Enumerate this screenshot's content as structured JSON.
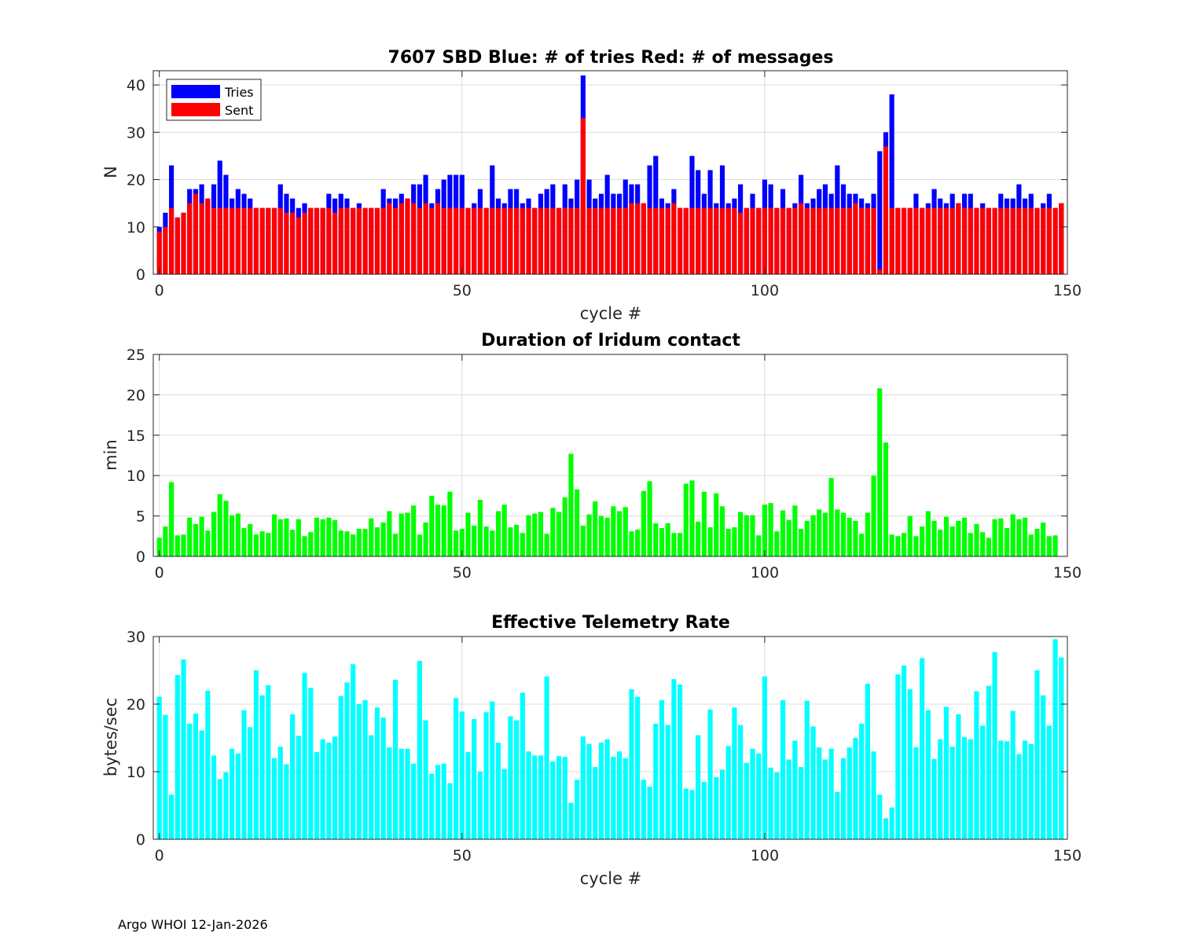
{
  "footer": "Argo WHOI 12-Jan-2026",
  "chart_data": [
    {
      "type": "bar",
      "stacked_overlay": true,
      "title": "7607 SBD  Blue: # of tries   Red: # of messages",
      "xlabel": "cycle #",
      "ylabel": "N",
      "xlim": [
        -1,
        150
      ],
      "ylim": [
        0,
        43
      ],
      "xticks": [
        0,
        50,
        100,
        150
      ],
      "yticks": [
        0,
        10,
        20,
        30,
        40
      ],
      "grid": true,
      "legend": "top-left",
      "series": [
        {
          "name": "Tries",
          "color": "#0000ff",
          "values": [
            10,
            13,
            23,
            12,
            13,
            18,
            18,
            19,
            16,
            19,
            24,
            21,
            16,
            18,
            17,
            16,
            14,
            14,
            14,
            14,
            19,
            17,
            16,
            14,
            15,
            14,
            14,
            14,
            17,
            16,
            17,
            16,
            14,
            15,
            14,
            14,
            14,
            18,
            16,
            16,
            17,
            16,
            19,
            19,
            21,
            15,
            18,
            20,
            21,
            21,
            21,
            14,
            15,
            18,
            14,
            23,
            16,
            15,
            18,
            18,
            15,
            16,
            14,
            17,
            18,
            19,
            14,
            19,
            16,
            20,
            42,
            20,
            16,
            17,
            21,
            17,
            17,
            20,
            19,
            19,
            15,
            23,
            25,
            16,
            15,
            18,
            14,
            14,
            25,
            22,
            17,
            22,
            15,
            23,
            15,
            16,
            19,
            14,
            17,
            14,
            20,
            19,
            14,
            18,
            14,
            15,
            21,
            15,
            16,
            18,
            19,
            17,
            23,
            19,
            17,
            17,
            16,
            15,
            17,
            26,
            30,
            38,
            14,
            14,
            14,
            17,
            14,
            15,
            18,
            16,
            15,
            17,
            15,
            17,
            17,
            14,
            15,
            14,
            14,
            17,
            16,
            16,
            19,
            16,
            17,
            14,
            15,
            17,
            14,
            15
          ]
        },
        {
          "name": "Sent",
          "color": "#ff0000",
          "values": [
            9,
            10,
            14,
            12,
            13,
            15,
            17,
            15,
            16,
            14,
            14,
            14,
            14,
            14,
            14,
            14,
            14,
            14,
            14,
            14,
            14,
            13,
            13,
            12,
            13,
            14,
            14,
            14,
            14,
            13,
            14,
            14,
            14,
            14,
            14,
            14,
            14,
            14,
            15,
            14,
            15,
            16,
            15,
            14,
            15,
            14,
            15,
            14,
            14,
            14,
            14,
            14,
            14,
            14,
            14,
            14,
            14,
            14,
            14,
            14,
            14,
            14,
            14,
            14,
            14,
            14,
            14,
            14,
            14,
            14,
            33,
            14,
            14,
            14,
            14,
            14,
            14,
            14,
            15,
            15,
            15,
            14,
            14,
            14,
            14,
            15,
            14,
            14,
            14,
            14,
            14,
            14,
            14,
            14,
            14,
            14,
            13,
            14,
            14,
            14,
            14,
            14,
            14,
            14,
            14,
            14,
            15,
            14,
            14,
            14,
            14,
            14,
            14,
            14,
            14,
            15,
            14,
            14,
            14,
            1,
            27,
            14,
            14,
            14,
            14,
            14,
            14,
            14,
            14,
            14,
            14,
            14,
            15,
            14,
            14,
            14,
            14,
            14,
            14,
            14,
            14,
            14,
            14,
            14,
            14,
            14,
            14,
            14,
            14,
            15
          ]
        }
      ]
    },
    {
      "type": "bar",
      "title": "Duration of Iridum contact",
      "xlabel": "",
      "ylabel": "min",
      "xlim": [
        -1,
        150
      ],
      "ylim": [
        0,
        25
      ],
      "xticks": [
        0,
        50,
        100,
        150
      ],
      "yticks": [
        0,
        5,
        10,
        15,
        20,
        25
      ],
      "grid": true,
      "color": "#00ff00",
      "values": [
        2.3,
        3.7,
        9.2,
        2.6,
        2.7,
        4.8,
        4.0,
        4.9,
        3.2,
        5.5,
        7.7,
        6.9,
        5.1,
        5.3,
        3.5,
        4.0,
        2.7,
        3.1,
        2.9,
        5.2,
        4.6,
        4.7,
        3.3,
        4.6,
        2.5,
        3.0,
        4.8,
        4.6,
        4.8,
        4.5,
        3.2,
        3.1,
        2.7,
        3.4,
        3.4,
        4.7,
        3.6,
        4.2,
        5.6,
        2.8,
        5.3,
        5.4,
        6.3,
        2.7,
        4.2,
        7.5,
        6.4,
        6.3,
        8.0,
        3.2,
        3.4,
        5.4,
        3.8,
        7.0,
        3.7,
        3.2,
        5.6,
        6.4,
        3.6,
        3.9,
        2.9,
        5.1,
        5.3,
        5.5,
        2.8,
        6.0,
        5.5,
        7.3,
        12.7,
        8.3,
        3.8,
        5.2,
        6.8,
        5.0,
        4.8,
        6.2,
        5.6,
        6.1,
        3.1,
        3.3,
        8.1,
        9.3,
        4.1,
        3.5,
        4.1,
        2.9,
        2.9,
        9.0,
        9.4,
        4.3,
        8.0,
        3.6,
        7.8,
        6.2,
        3.4,
        3.6,
        5.5,
        5.1,
        5.1,
        2.6,
        6.4,
        6.6,
        3.1,
        5.7,
        4.5,
        6.3,
        3.4,
        4.4,
        5.1,
        5.8,
        5.4,
        9.7,
        5.8,
        5.4,
        4.8,
        4.4,
        2.8,
        5.4,
        10.0,
        20.8,
        14.1,
        2.7,
        2.5,
        2.9,
        5.0,
        2.5,
        3.7,
        5.6,
        4.4,
        3.3,
        4.9,
        3.7,
        4.4,
        4.8,
        2.9,
        4.0,
        3.0,
        2.3,
        4.6,
        4.7,
        3.5,
        5.2,
        4.6,
        4.8,
        2.7,
        3.4,
        4.2,
        2.5,
        2.6
      ]
    },
    {
      "type": "bar",
      "title": "Effective Telemetry Rate",
      "xlabel": "cycle #",
      "ylabel": "bytes/sec",
      "xlim": [
        -1,
        150
      ],
      "ylim": [
        0,
        30
      ],
      "xticks": [
        0,
        50,
        100,
        150
      ],
      "yticks": [
        0,
        10,
        20,
        30
      ],
      "grid": true,
      "color": "#00ffff",
      "values": [
        21.1,
        18.4,
        6.6,
        24.3,
        26.6,
        17.1,
        18.6,
        16.1,
        22.0,
        12.4,
        8.9,
        9.9,
        13.4,
        12.7,
        19.1,
        16.6,
        25.0,
        21.3,
        22.8,
        12.0,
        13.7,
        11.1,
        18.5,
        15.3,
        24.6,
        22.4,
        12.9,
        14.8,
        14.3,
        15.2,
        21.2,
        23.2,
        25.9,
        20.0,
        20.6,
        15.4,
        19.5,
        18.0,
        13.6,
        23.6,
        13.4,
        13.4,
        11.2,
        26.4,
        17.6,
        9.7,
        11.0,
        11.2,
        8.3,
        20.9,
        18.9,
        12.9,
        17.8,
        10.0,
        18.8,
        20.4,
        14.3,
        10.4,
        18.2,
        17.6,
        21.7,
        13.0,
        12.4,
        12.4,
        24.1,
        11.5,
        12.3,
        12.2,
        5.4,
        8.8,
        15.2,
        14.1,
        10.7,
        14.3,
        14.8,
        12.2,
        13.0,
        12.0,
        22.2,
        21.1,
        8.8,
        7.8,
        17.1,
        20.6,
        16.9,
        23.7,
        22.9,
        7.5,
        7.3,
        15.4,
        8.5,
        19.2,
        9.2,
        10.3,
        13.8,
        19.5,
        16.9,
        11.3,
        13.4,
        12.7,
        24.1,
        10.6,
        9.9,
        20.6,
        11.8,
        14.6,
        10.7,
        20.5,
        16.7,
        13.6,
        11.8,
        13.4,
        7.0,
        12.0,
        13.6,
        15.0,
        17.1,
        23.0,
        13.0,
        6.6,
        3.1,
        4.7,
        24.4,
        25.7,
        22.2,
        13.6,
        26.8,
        19.1,
        11.9,
        14.8,
        19.6,
        13.7,
        18.5,
        15.1,
        14.8,
        21.9,
        16.8,
        22.7,
        27.7,
        14.6,
        14.5,
        19.0,
        12.6,
        14.6,
        14.1,
        25.0,
        21.3,
        16.8,
        29.6,
        26.9
      ]
    }
  ]
}
